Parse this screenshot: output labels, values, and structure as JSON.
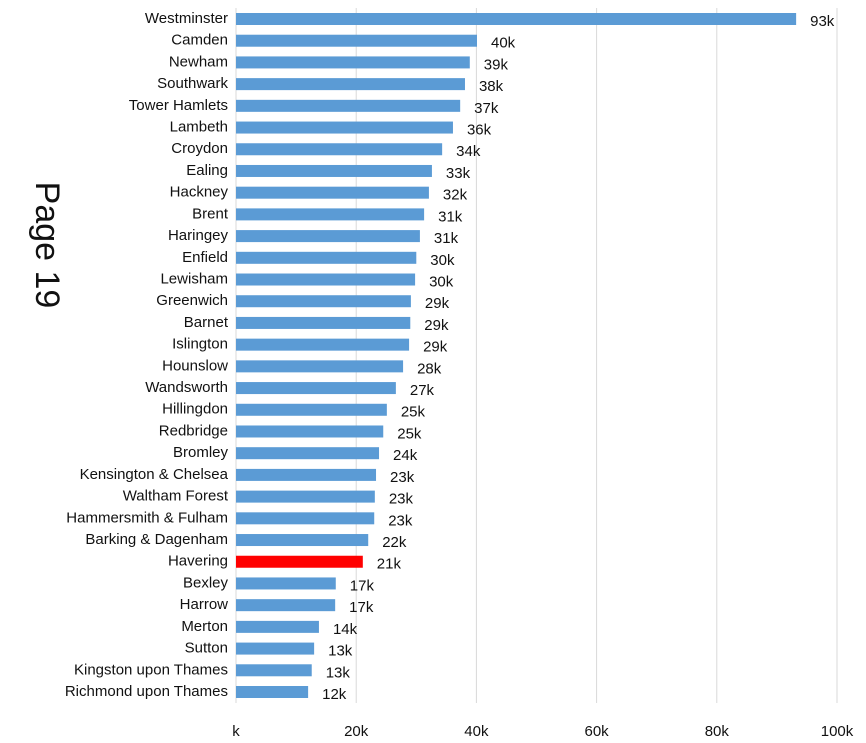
{
  "chart_data": {
    "type": "hbar",
    "annotation": "Page 19",
    "categories": [
      "Westminster",
      "Camden",
      "Newham",
      "Southwark",
      "Tower Hamlets",
      "Lambeth",
      "Croydon",
      "Ealing",
      "Hackney",
      "Brent",
      "Haringey",
      "Enfield",
      "Lewisham",
      "Greenwich",
      "Barnet",
      "Islington",
      "Hounslow",
      "Wandsworth",
      "Hillingdon",
      "Redbridge",
      "Bromley",
      "Kensington & Chelsea",
      "Waltham Forest",
      "Hammersmith & Fulham",
      "Barking & Dagenham",
      "Havering",
      "Bexley",
      "Harrow",
      "Merton",
      "Sutton",
      "Kingston upon Thames",
      "Richmond upon Thames"
    ],
    "values": [
      93.2,
      40.1,
      38.9,
      38.1,
      37.3,
      36.1,
      34.3,
      32.6,
      32.1,
      31.3,
      30.6,
      30.0,
      29.8,
      29.1,
      29.0,
      28.8,
      27.8,
      26.6,
      25.1,
      24.5,
      23.8,
      23.3,
      23.1,
      23.0,
      22.0,
      21.1,
      16.6,
      16.5,
      13.8,
      13.0,
      12.6,
      12.0
    ],
    "value_labels": [
      "93k",
      "40k",
      "39k",
      "38k",
      "37k",
      "36k",
      "34k",
      "33k",
      "32k",
      "31k",
      "31k",
      "30k",
      "30k",
      "29k",
      "29k",
      "29k",
      "28k",
      "27k",
      "25k",
      "25k",
      "24k",
      "23k",
      "23k",
      "23k",
      "22k",
      "21k",
      "17k",
      "17k",
      "14k",
      "13k",
      "13k",
      "12k"
    ],
    "colors": [
      "#5b9bd5",
      "#5b9bd5",
      "#5b9bd5",
      "#5b9bd5",
      "#5b9bd5",
      "#5b9bd5",
      "#5b9bd5",
      "#5b9bd5",
      "#5b9bd5",
      "#5b9bd5",
      "#5b9bd5",
      "#5b9bd5",
      "#5b9bd5",
      "#5b9bd5",
      "#5b9bd5",
      "#5b9bd5",
      "#5b9bd5",
      "#5b9bd5",
      "#5b9bd5",
      "#5b9bd5",
      "#5b9bd5",
      "#5b9bd5",
      "#5b9bd5",
      "#5b9bd5",
      "#5b9bd5",
      "#ff0000",
      "#5b9bd5",
      "#5b9bd5",
      "#5b9bd5",
      "#5b9bd5",
      "#5b9bd5",
      "#5b9bd5"
    ],
    "xlim": [
      0,
      100
    ],
    "xticks": [
      {
        "value": 0,
        "label": "k"
      },
      {
        "value": 20,
        "label": "20k"
      },
      {
        "value": 40,
        "label": "40k"
      },
      {
        "value": 60,
        "label": "60k"
      },
      {
        "value": 80,
        "label": "80k"
      },
      {
        "value": 100,
        "label": "100k"
      }
    ],
    "grid": true
  }
}
